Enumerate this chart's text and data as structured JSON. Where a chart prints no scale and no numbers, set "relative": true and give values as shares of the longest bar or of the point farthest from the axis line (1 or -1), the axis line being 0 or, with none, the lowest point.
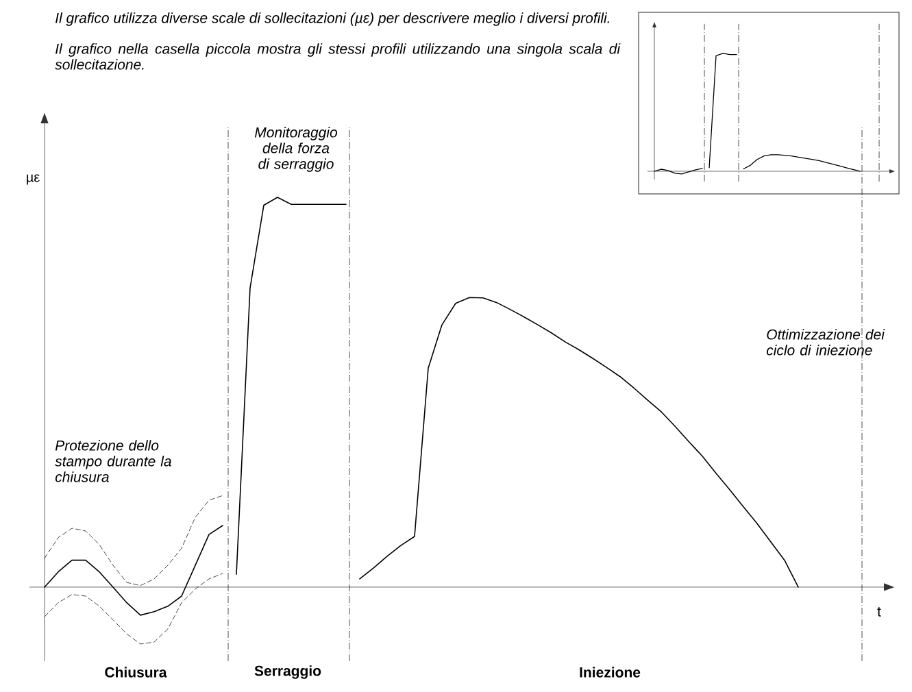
{
  "chart_data": [
    {
      "type": "line",
      "relative": true,
      "xlabel": "t",
      "ylabel": "µε",
      "categories": [
        null,
        null,
        null,
        null,
        null,
        null,
        null,
        null,
        null,
        null,
        null,
        null,
        null,
        null,
        null,
        null,
        null,
        null,
        null,
        null,
        null,
        null,
        null,
        null,
        null,
        null,
        null,
        null,
        null,
        null,
        null,
        null,
        null,
        null,
        null,
        null,
        null,
        null,
        null,
        null,
        null,
        null,
        null,
        null,
        null,
        null,
        null,
        null,
        null,
        null,
        null,
        null,
        null,
        null,
        null,
        null,
        null,
        null,
        null,
        null,
        null
      ],
      "annotations": [
        "*Il grafico utilizza diverse scale di sollecitazioni (µε) per descrivere meglio i diversi profili.*",
        "*Il grafico nella casella piccola mostra gli stessi profili utilizzando una singola scala di sollecitazione.*",
        "*Protezione dello stampo durante la chiusura*",
        "*Monitoraggio della forza di serraggio*",
        "*Ottimizzazione dei ciclo di iniezione*",
        "**Chiusura**",
        "**Serraggio**",
        "**Iniezione**"
      ],
      "series": [
        {
          "color": "#000000",
          "line_style": "solid",
          "values": [
            0,
            0.039,
            0.069,
            0.069,
            0.039,
            0,
            -0.04,
            -0.072,
            -0.063,
            -0.049,
            -0.023,
            0.056,
            0.135,
            0.158,
            null,
            null,
            null,
            null,
            null,
            null,
            null,
            null,
            null,
            null,
            null,
            null,
            null,
            null,
            null,
            null,
            null,
            null,
            null,
            null,
            null,
            null,
            null,
            null,
            null,
            null,
            null,
            null,
            null,
            null,
            null,
            null,
            null,
            null,
            null,
            null,
            null,
            null,
            null,
            null,
            null,
            null,
            null,
            null,
            null,
            null,
            null
          ]
        },
        {
          "color": "#000000",
          "line_style": "dashed",
          "values": [
            0.074,
            0.127,
            0.151,
            0.144,
            0.109,
            0.056,
            0.012,
            0.004,
            0.021,
            0.056,
            0.1,
            0.179,
            0.223,
            0.235,
            null,
            null,
            null,
            null,
            null,
            null,
            null,
            null,
            null,
            null,
            null,
            null,
            null,
            null,
            null,
            null,
            null,
            null,
            null,
            null,
            null,
            null,
            null,
            null,
            null,
            null,
            null,
            null,
            null,
            null,
            null,
            null,
            null,
            null,
            null,
            null,
            null,
            null,
            null,
            null,
            null,
            null,
            null,
            null,
            null,
            null,
            null
          ]
        },
        {
          "color": "#000000",
          "line_style": "dashed",
          "values": [
            -0.076,
            -0.04,
            -0.019,
            -0.023,
            -0.049,
            -0.084,
            -0.12,
            -0.146,
            -0.141,
            -0.107,
            -0.04,
            -0.005,
            0.021,
            0.035,
            null,
            null,
            null,
            null,
            null,
            null,
            null,
            null,
            null,
            null,
            null,
            null,
            null,
            null,
            null,
            null,
            null,
            null,
            null,
            null,
            null,
            null,
            null,
            null,
            null,
            null,
            null,
            null,
            null,
            null,
            null,
            null,
            null,
            null,
            null,
            null,
            null,
            null,
            null,
            null,
            null,
            null,
            null,
            null,
            null,
            null,
            null
          ]
        },
        {
          "color": "#000000",
          "line_style": "solid",
          "values": [
            null,
            null,
            null,
            null,
            null,
            null,
            null,
            null,
            null,
            null,
            null,
            null,
            null,
            null,
            0.033,
            0.768,
            0.98,
            1.0,
            0.982,
            0.982,
            0.982,
            0.982,
            0.982,
            null,
            null,
            null,
            null,
            null,
            null,
            null,
            null,
            null,
            null,
            null,
            null,
            null,
            null,
            null,
            null,
            null,
            null,
            null,
            null,
            null,
            null,
            null,
            null,
            null,
            null,
            null,
            null,
            null,
            null,
            null,
            null,
            null,
            null,
            null,
            null,
            null,
            null
          ]
        },
        {
          "color": "#000000",
          "line_style": "solid",
          "values": [
            null,
            null,
            null,
            null,
            null,
            null,
            null,
            null,
            null,
            null,
            null,
            null,
            null,
            null,
            null,
            null,
            null,
            null,
            null,
            null,
            null,
            null,
            null,
            0.021,
            0.049,
            0.079,
            0.107,
            0.13,
            0.562,
            0.673,
            0.728,
            0.743,
            0.742,
            0.73,
            0.712,
            0.693,
            0.673,
            0.652,
            0.629,
            0.609,
            0.587,
            0.564,
            0.54,
            0.511,
            0.48,
            0.45,
            0.413,
            0.374,
            0.336,
            0.292,
            0.25,
            0.206,
            0.163,
            0.116,
            0.069,
            0,
            null,
            null,
            null,
            null,
            null
          ]
        }
      ]
    },
    {
      "type": "line",
      "relative": true,
      "categories": [
        null,
        null,
        null,
        null,
        null,
        null,
        null,
        null,
        null,
        null,
        null,
        null,
        null,
        null,
        null,
        null,
        null,
        null,
        null,
        null,
        null,
        null,
        null,
        null,
        null,
        null,
        null,
        null,
        null,
        null,
        null,
        null,
        null,
        null
      ],
      "series": [
        {
          "color": "#000000",
          "line_style": "solid",
          "values": [
            0,
            0.017,
            0.006,
            -0.017,
            -0.023,
            -0.006,
            0.012,
            0.023,
            null,
            null,
            null,
            null,
            null,
            null,
            null,
            null,
            null,
            null,
            null,
            null,
            null,
            null,
            null,
            null,
            null,
            null,
            null,
            null,
            null,
            null,
            null,
            null,
            null,
            null
          ]
        },
        {
          "color": "#000000",
          "line_style": "solid",
          "values": [
            null,
            null,
            null,
            null,
            null,
            null,
            null,
            null,
            0.03,
            0.98,
            1.0,
            0.99,
            0.99,
            null,
            null,
            null,
            null,
            null,
            null,
            null,
            null,
            null,
            null,
            null,
            null,
            null,
            null,
            null,
            null,
            null,
            null,
            null,
            null,
            null
          ]
        },
        {
          "color": "#000000",
          "line_style": "solid",
          "values": [
            null,
            null,
            null,
            null,
            null,
            null,
            null,
            null,
            null,
            null,
            null,
            null,
            null,
            0.02,
            0.05,
            0.1,
            0.13,
            0.14,
            0.14,
            0.135,
            0.13,
            0.12,
            0.11,
            0.1,
            0.09,
            0.075,
            0.06,
            0.045,
            0.03,
            0.015,
            0,
            null,
            null,
            null
          ]
        }
      ]
    }
  ]
}
